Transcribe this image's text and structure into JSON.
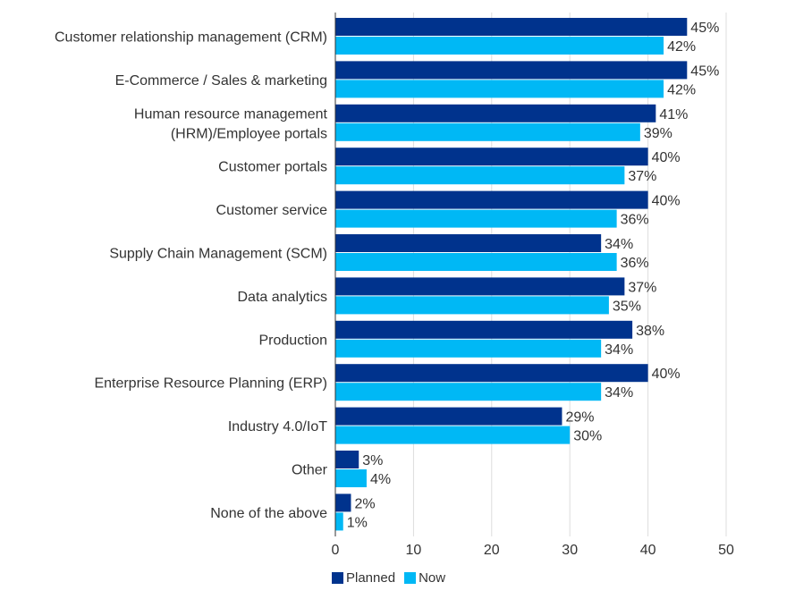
{
  "chart_data": {
    "type": "bar",
    "orientation": "horizontal",
    "title": "",
    "xlabel": "",
    "ylabel": "",
    "xlim": [
      0,
      50
    ],
    "xticks": [
      0,
      10,
      20,
      30,
      40,
      50
    ],
    "grid": true,
    "legend_position": "bottom-left",
    "value_suffix": "%",
    "categories": [
      [
        "Customer relationship management (CRM)"
      ],
      [
        "E-Commerce / Sales & marketing"
      ],
      [
        "Human resource management",
        "(HRM)/Employee portals"
      ],
      [
        "Customer portals"
      ],
      [
        "Customer service"
      ],
      [
        "Supply Chain Management (SCM)"
      ],
      [
        "Data analytics"
      ],
      [
        "Production"
      ],
      [
        "Enterprise Resource Planning (ERP)"
      ],
      [
        "Industry 4.0/IoT"
      ],
      [
        "Other"
      ],
      [
        "None of the above"
      ]
    ],
    "series": [
      {
        "name": "Planned",
        "color": "#00338D",
        "values": [
          45,
          45,
          41,
          40,
          40,
          34,
          37,
          38,
          40,
          29,
          3,
          2
        ]
      },
      {
        "name": "Now",
        "color": "#00B8F5",
        "values": [
          42,
          42,
          39,
          37,
          36,
          36,
          35,
          34,
          34,
          30,
          4,
          1
        ]
      }
    ]
  },
  "legend": {
    "items": [
      {
        "label": "Planned",
        "color": "#00338D"
      },
      {
        "label": "Now",
        "color": "#00B8F5"
      }
    ]
  }
}
